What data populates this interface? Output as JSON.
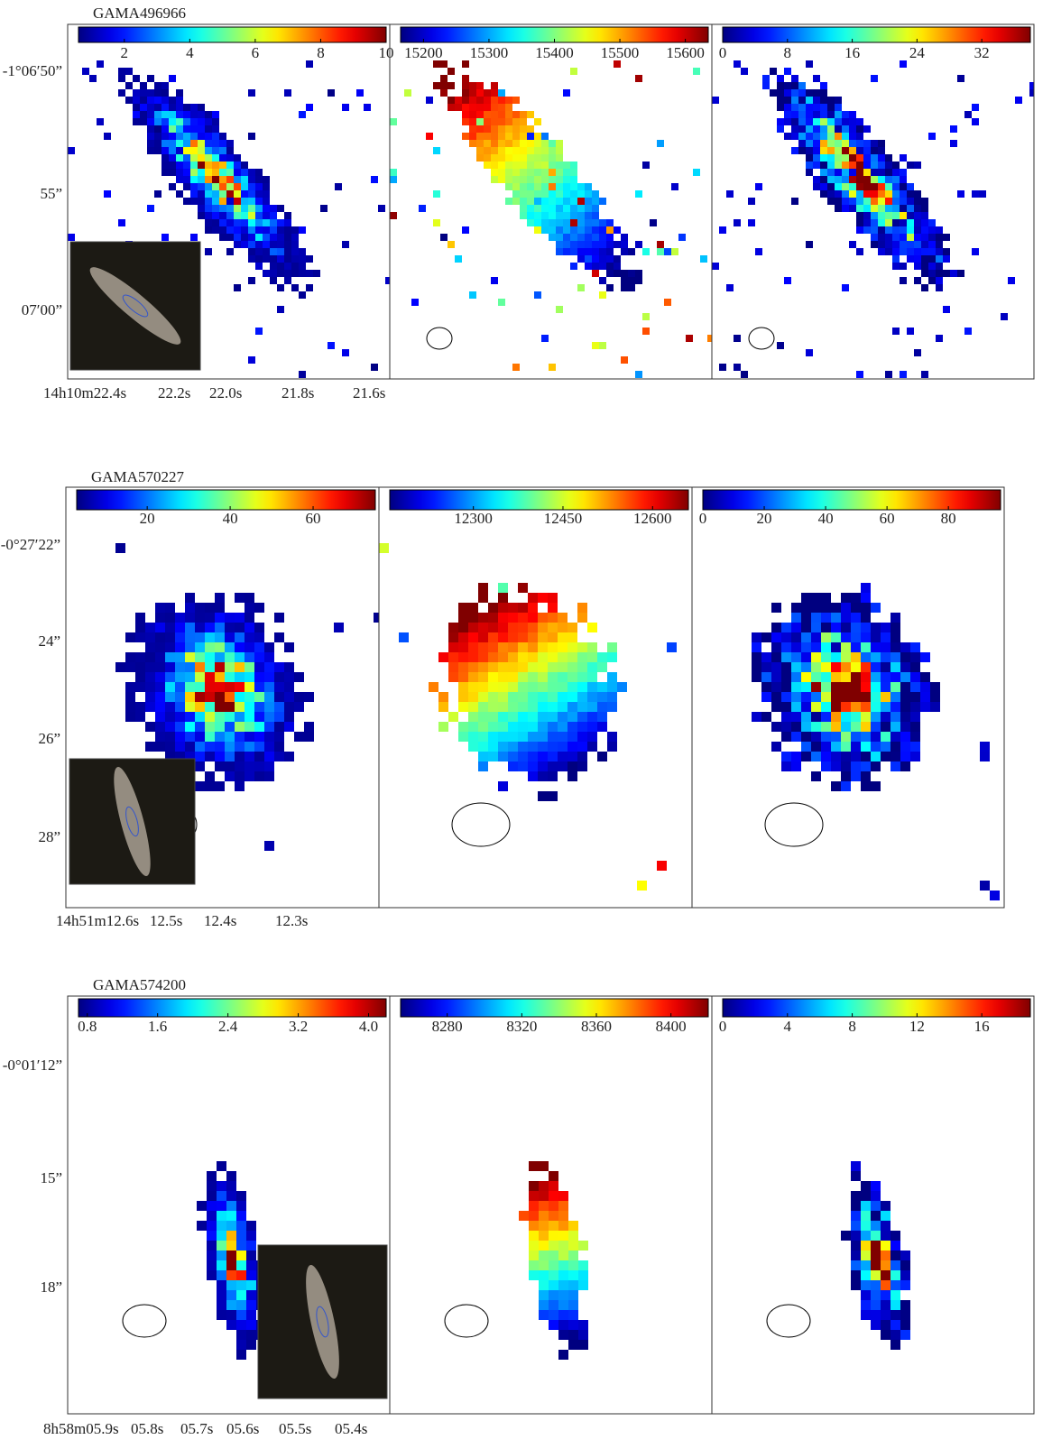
{
  "rows": [
    {
      "name": "GAMA496966",
      "yticks": [
        "-1°06′50”",
        "55”",
        "07′00”"
      ],
      "xticks": [
        "14h10m22.4s",
        "22.2s",
        "22.0s",
        "21.8s",
        "21.6s"
      ],
      "panels": [
        {
          "clim": [
            0.6,
            10
          ],
          "ticks": [
            2,
            4,
            6,
            8,
            10
          ]
        },
        {
          "clim": [
            15165,
            15635
          ],
          "ticks": [
            15200,
            15300,
            15400,
            15500,
            15600
          ]
        },
        {
          "clim": [
            0,
            38
          ],
          "ticks": [
            0,
            8,
            16,
            24,
            32
          ]
        }
      ]
    },
    {
      "name": "GAMA570227",
      "yticks": [
        "-0°27′22”",
        "24”",
        "26”",
        "28”"
      ],
      "xticks": [
        "14h51m12.6s",
        "12.5s",
        "12.4s",
        "12.3s"
      ],
      "panels": [
        {
          "clim": [
            3,
            75
          ],
          "ticks": [
            20,
            40,
            60
          ]
        },
        {
          "clim": [
            12160,
            12660
          ],
          "ticks": [
            12300,
            12450,
            12600
          ]
        },
        {
          "clim": [
            0,
            97
          ],
          "ticks": [
            0,
            20,
            40,
            60,
            80
          ]
        }
      ]
    },
    {
      "name": "GAMA574200",
      "yticks": [
        "-0°01′12”",
        "15”",
        "18”"
      ],
      "xticks": [
        "8h58m05.9s",
        "05.8s",
        "05.7s",
        "05.6s",
        "05.5s",
        "05.4s"
      ],
      "panels": [
        {
          "clim": [
            0.7,
            4.2
          ],
          "ticks": [
            {
              "value": 0.8,
              "label": "0.8"
            },
            1.6,
            2.4,
            3.2,
            {
              "value": 4,
              "label": "4.0"
            }
          ]
        },
        {
          "clim": [
            8255,
            8420
          ],
          "ticks": [
            8280,
            8320,
            8360,
            8400
          ]
        },
        {
          "clim": [
            0,
            19
          ],
          "ticks": [
            0,
            4,
            8,
            12,
            16
          ]
        }
      ]
    }
  ]
}
